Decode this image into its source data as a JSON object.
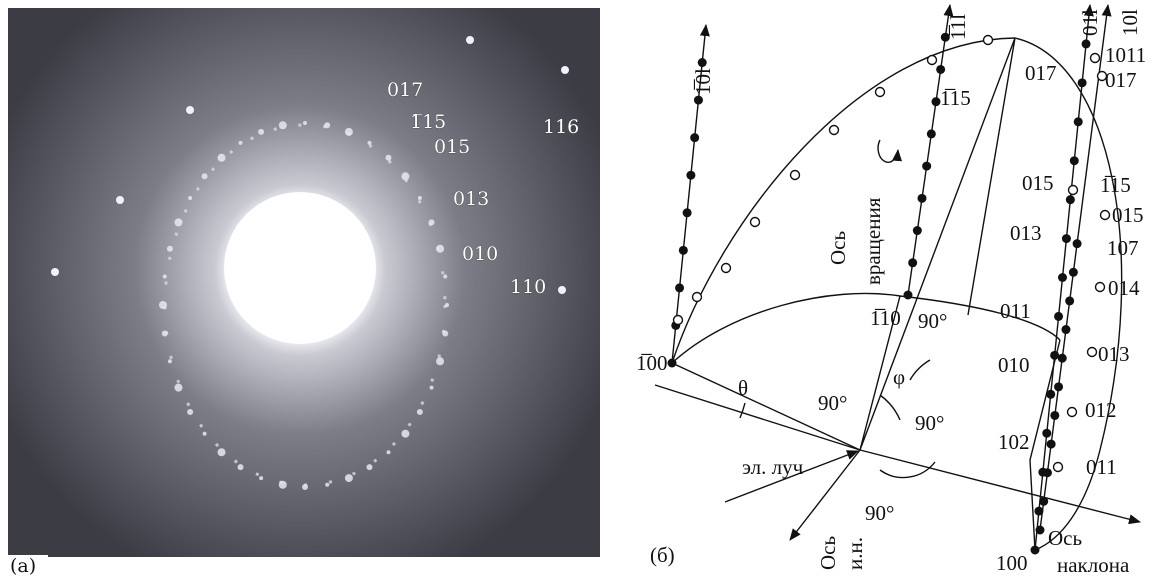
{
  "panel_a": {
    "label": "(a)",
    "reflections": [
      "017",
      "1̅15",
      "015",
      "116",
      "013",
      "010",
      "110"
    ]
  },
  "panel_b": {
    "label": "(б)",
    "rods": [
      "1̅0l",
      "1̅1l",
      "01l",
      "10l"
    ],
    "left_points": [
      "1̅00",
      "1̅10",
      "1̅15"
    ],
    "rod_01l_points": [
      "017",
      "015",
      "013",
      "011",
      "010",
      "102",
      "100"
    ],
    "rod_10l_points": [
      "1011",
      "017",
      "1̅15",
      "015",
      "107",
      "014",
      "013",
      "012",
      "011"
    ],
    "angles": [
      "θ",
      "90°",
      "φ",
      "90°",
      "90°",
      "90°"
    ],
    "axes": {
      "rotation": [
        "Ось",
        "вращения"
      ],
      "beam": "эл. луч",
      "normal": [
        "Ось",
        "и.н."
      ],
      "tilt": [
        "Ось",
        "наклона"
      ]
    }
  }
}
